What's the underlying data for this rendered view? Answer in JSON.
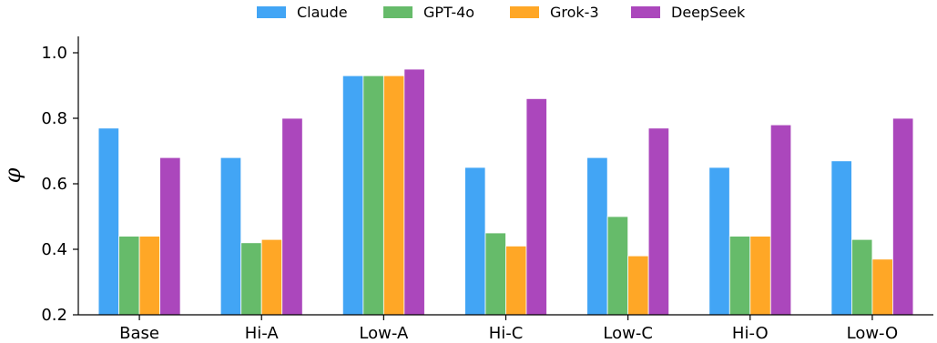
{
  "chart_data": {
    "type": "bar",
    "categories": [
      "Base",
      "Hi-A",
      "Low-A",
      "Hi-C",
      "Low-C",
      "Hi-O",
      "Low-O"
    ],
    "series": [
      {
        "name": "Claude",
        "color": "#42A5F5",
        "values": [
          0.77,
          0.68,
          0.93,
          0.65,
          0.68,
          0.65,
          0.67
        ]
      },
      {
        "name": "GPT-4o",
        "color": "#66BB6A",
        "values": [
          0.44,
          0.42,
          0.93,
          0.45,
          0.5,
          0.44,
          0.43
        ]
      },
      {
        "name": "Grok-3",
        "color": "#FFA726",
        "values": [
          0.44,
          0.43,
          0.93,
          0.41,
          0.38,
          0.44,
          0.37
        ]
      },
      {
        "name": "DeepSeek",
        "color": "#AB47BC",
        "values": [
          0.68,
          0.8,
          0.95,
          0.86,
          0.77,
          0.78,
          0.8
        ]
      }
    ],
    "ylabel": "φ",
    "xlabel": "",
    "title": "",
    "ylim": [
      0.2,
      1.05
    ],
    "yticks": [
      "0.2",
      "0.4",
      "0.6",
      "0.8",
      "1.0"
    ],
    "legend_position": "top-center",
    "grid": false
  }
}
